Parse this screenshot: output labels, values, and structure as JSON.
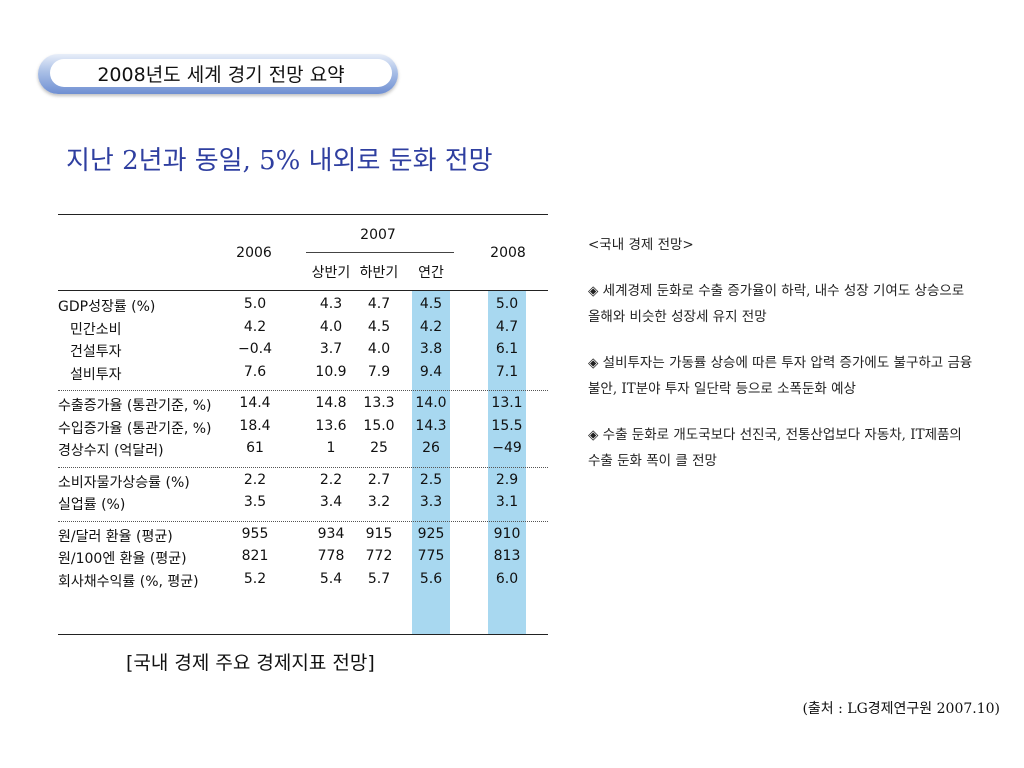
{
  "slide_title": "2008년도 세계 경기 전망 요약",
  "headline": "지난 2년과 동일,  5% 내외로 둔화 전망",
  "table": {
    "header": {
      "y2006": "2006",
      "y2007": "2007",
      "h1": "상반기",
      "h2": "하반기",
      "annual": "연간",
      "y2008": "2008"
    },
    "groups": [
      {
        "rows": [
          {
            "label": "GDP성장률 (%)",
            "indent": false,
            "values": [
              "5.0",
              "4.3",
              "4.7",
              "4.5",
              "5.0"
            ]
          },
          {
            "label": "민간소비",
            "indent": true,
            "values": [
              "4.2",
              "4.0",
              "4.5",
              "4.2",
              "4.7"
            ]
          },
          {
            "label": "건설투자",
            "indent": true,
            "values": [
              "−0.4",
              "3.7",
              "4.0",
              "3.8",
              "6.1"
            ]
          },
          {
            "label": "설비투자",
            "indent": true,
            "values": [
              "7.6",
              "10.9",
              "7.9",
              "9.4",
              "7.1"
            ]
          }
        ]
      },
      {
        "rows": [
          {
            "label": "수출증가율 (통관기준, %)",
            "indent": false,
            "values": [
              "14.4",
              "14.8",
              "13.3",
              "14.0",
              "13.1"
            ]
          },
          {
            "label": "수입증가율 (통관기준, %)",
            "indent": false,
            "values": [
              "18.4",
              "13.6",
              "15.0",
              "14.3",
              "15.5"
            ]
          },
          {
            "label": "경상수지 (억달러)",
            "indent": false,
            "values": [
              "61",
              "1",
              "25",
              "26",
              "−49"
            ]
          }
        ]
      },
      {
        "rows": [
          {
            "label": "소비자물가상승률 (%)",
            "indent": false,
            "values": [
              "2.2",
              "2.2",
              "2.7",
              "2.5",
              "2.9"
            ]
          },
          {
            "label": "실업률 (%)",
            "indent": false,
            "values": [
              "3.5",
              "3.4",
              "3.2",
              "3.3",
              "3.1"
            ]
          }
        ]
      },
      {
        "rows": [
          {
            "label": "원/달러 환율 (평균)",
            "indent": false,
            "values": [
              "955",
              "934",
              "915",
              "925",
              "910"
            ]
          },
          {
            "label": "원/100엔 환율 (평균)",
            "indent": false,
            "values": [
              "821",
              "778",
              "772",
              "775",
              "813"
            ]
          },
          {
            "label": "회사채수익률 (%, 평균)",
            "indent": false,
            "values": [
              "5.2",
              "5.4",
              "5.7",
              "5.6",
              "6.0"
            ]
          }
        ]
      }
    ],
    "highlight_color": "#a8d8f0"
  },
  "caption": "[국내 경제 주요 경제지표 전망]",
  "notes": {
    "heading": "<국내 경제 전망>",
    "bullets": [
      "◈ 세계경제 둔화로 수출 증가율이 하락, 내수 성장 기여도 상승으로 올해와 비슷한 성장세 유지 전망",
      "◈ 설비투자는 가동률 상승에 따른 투자 압력 증가에도 불구하고 금융 불안, IT분야 투자 일단락 등으로 소폭둔화 예상",
      "◈ 수출 둔화로 개도국보다 선진국, 전통산업보다 자동차, IT제품의 수출 둔화 폭이 클 전망"
    ]
  },
  "source": "(출처 : LG경제연구원 2007.10)"
}
